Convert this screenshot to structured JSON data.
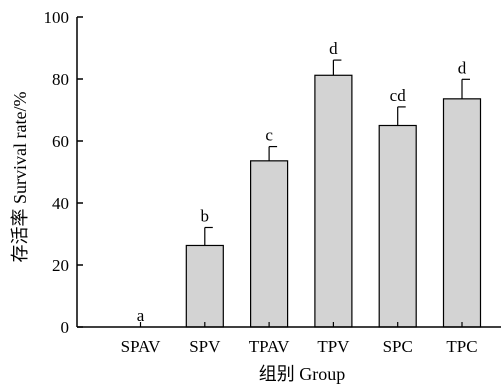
{
  "chart_data": {
    "type": "bar",
    "categories": [
      "SPAV",
      "SPV",
      "TPAV",
      "TPV",
      "SPC",
      "TPC"
    ],
    "values": [
      0,
      26.3,
      53.6,
      81.2,
      65.0,
      73.6
    ],
    "errors": [
      0,
      5.8,
      4.6,
      4.9,
      6.0,
      6.3
    ],
    "significance_letters": [
      "a",
      "b",
      "c",
      "d",
      "cd",
      "d"
    ],
    "xlabel": "组别 Group",
    "ylabel": "存活率 Survival rate/%",
    "ylim": [
      0,
      100
    ],
    "yticks": [
      0,
      20,
      40,
      60,
      80,
      100
    ],
    "grid": false,
    "colors": {
      "bar_fill": "#d3d3d3",
      "bar_stroke": "#000000",
      "axis": "#000000"
    }
  }
}
